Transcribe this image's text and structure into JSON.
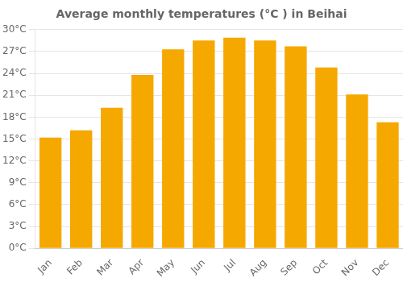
{
  "chart_data": {
    "type": "bar",
    "title": "Average monthly temperatures (°C ) in Beihai",
    "categories": [
      "Jan",
      "Feb",
      "Mar",
      "Apr",
      "May",
      "Jun",
      "Jul",
      "Aug",
      "Sep",
      "Oct",
      "Nov",
      "Dec"
    ],
    "values": [
      15.2,
      16.2,
      19.3,
      23.8,
      27.3,
      28.5,
      28.9,
      28.5,
      27.7,
      24.8,
      21.1,
      17.3
    ],
    "color": "#F5A800",
    "ylim": [
      0,
      30
    ],
    "yticks": [
      {
        "value": 0,
        "label": "0°C"
      },
      {
        "value": 3,
        "label": "3°C"
      },
      {
        "value": 6,
        "label": "6°C"
      },
      {
        "value": 9,
        "label": "9°C"
      },
      {
        "value": 12,
        "label": "12°C"
      },
      {
        "value": 15,
        "label": "15°C"
      },
      {
        "value": 18,
        "label": "18°C"
      },
      {
        "value": 21,
        "label": "21°C"
      },
      {
        "value": 24,
        "label": "24°C"
      },
      {
        "value": 27,
        "label": "27°C"
      },
      {
        "value": 30,
        "label": "30°C"
      }
    ],
    "grid": true
  }
}
